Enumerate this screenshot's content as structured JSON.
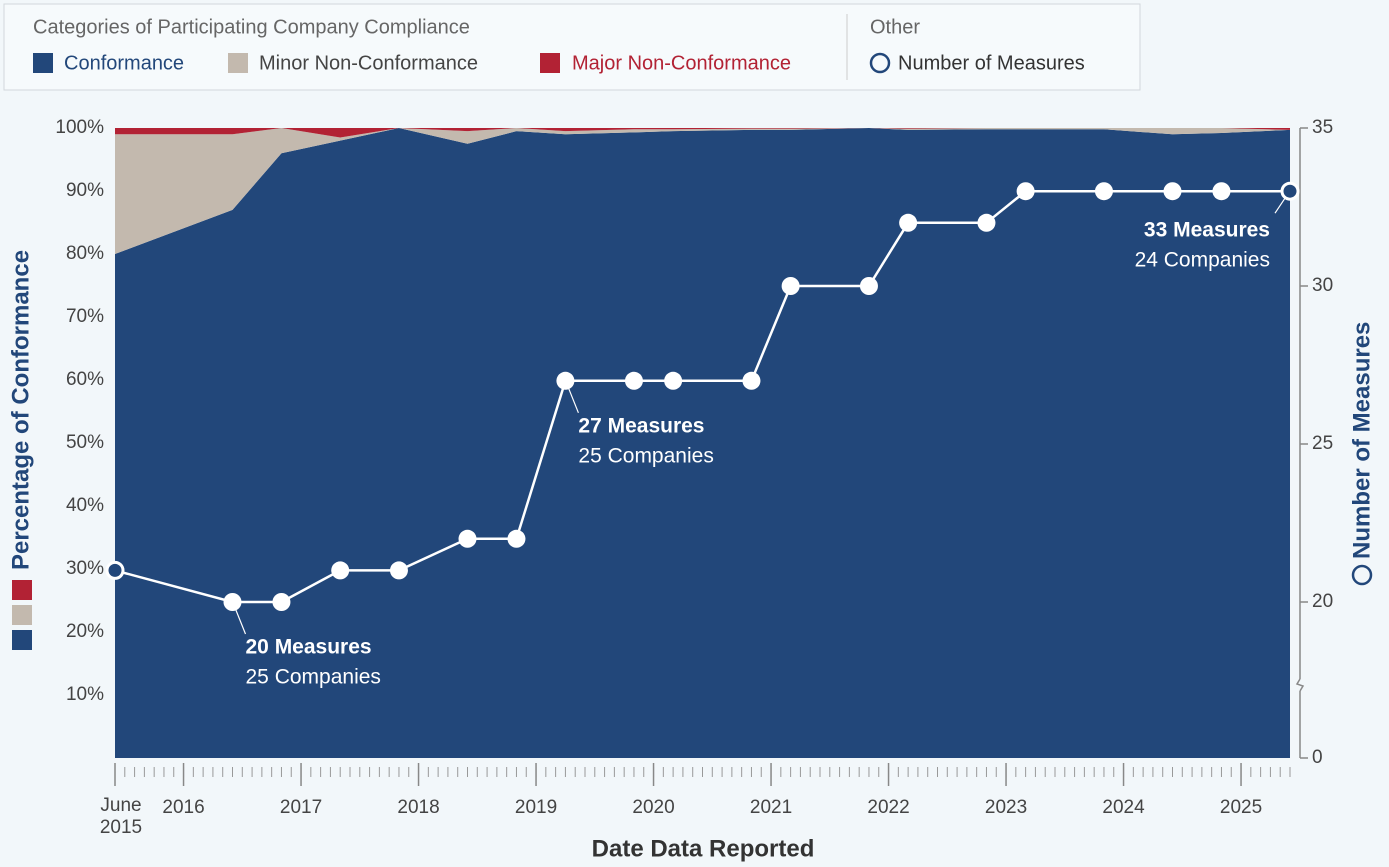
{
  "chart_data": {
    "type": "area",
    "legend_title": "Categories of Participating Company Compliance",
    "legend_other_title": "Other",
    "x": [
      "2015-06",
      "2016-06",
      "2016-11",
      "2017-05",
      "2017-11",
      "2018-06",
      "2018-11",
      "2019-04",
      "2019-11",
      "2020-03",
      "2020-11",
      "2021-03",
      "2021-11",
      "2022-03",
      "2022-11",
      "2023-03",
      "2023-11",
      "2024-06",
      "2024-11",
      "2025-06"
    ],
    "series": [
      {
        "name": "Conformance",
        "color": "#22477a",
        "values": [
          80,
          87,
          96,
          98,
          100,
          97.5,
          99.5,
          99,
          99.3,
          99.5,
          99.7,
          99.7,
          100,
          99.7,
          99.8,
          99.8,
          99.8,
          99,
          99.2,
          99.7
        ]
      },
      {
        "name": "Minor Non-Conformance",
        "color": "#c3b9ae",
        "values": [
          19,
          12,
          4,
          0.5,
          0,
          2,
          0.5,
          0.5,
          0.5,
          0.3,
          0.2,
          0.2,
          0,
          0.2,
          0.2,
          0.2,
          0.2,
          1,
          0.8,
          0
        ]
      },
      {
        "name": "Major Non-Conformance",
        "color": "#b22234",
        "values": [
          1,
          1,
          0,
          1.5,
          0,
          0.5,
          0,
          0.5,
          0.2,
          0.2,
          0.1,
          0.1,
          0,
          0.1,
          0,
          0,
          0,
          0,
          0,
          0.3
        ]
      },
      {
        "name": "Number of Measures",
        "type": "line",
        "axis": "y2",
        "color": "#ffffff",
        "values": [
          21,
          20,
          20,
          21,
          21,
          22,
          22,
          27,
          27,
          27,
          27,
          30,
          30,
          32,
          32,
          33,
          33,
          33,
          33,
          33
        ]
      }
    ],
    "xlim": [
      "2015-06",
      "2025-06"
    ],
    "xticks": [
      {
        "value": "2015-06",
        "label": "June 2015"
      },
      2016,
      2017,
      2018,
      2019,
      2020,
      2021,
      2022,
      2023,
      2024,
      2025
    ],
    "ylim": [
      0,
      100
    ],
    "yticks": [
      {
        "value": 10,
        "label": "10%"
      },
      {
        "value": 20,
        "label": "20%"
      },
      {
        "value": 30,
        "label": "30%"
      },
      {
        "value": 40,
        "label": "40%"
      },
      {
        "value": 50,
        "label": "50%"
      },
      {
        "value": 60,
        "label": "60%"
      },
      {
        "value": 70,
        "label": "70%"
      },
      {
        "value": 80,
        "label": "80%"
      },
      {
        "value": 90,
        "label": "90%"
      },
      {
        "value": 100,
        "label": "100%"
      }
    ],
    "y2lim": [
      0,
      35
    ],
    "y2ticks": [
      0,
      20,
      25,
      30,
      35
    ],
    "y2_break": true,
    "xlabel": "Date Data Reported",
    "ylabel": "Percentage of Conformance",
    "y2label": "Number of Measures",
    "annotations": [
      {
        "x": "2016-06",
        "y": 20,
        "text": "20 Measures",
        "subtext": "25 Companies"
      },
      {
        "x": "2019-04",
        "y": 27,
        "text": "27 Measures",
        "subtext": "25 Companies"
      },
      {
        "x": "2025-06",
        "y": 33,
        "text": "33 Measures",
        "subtext": "24 Companies"
      }
    ]
  }
}
